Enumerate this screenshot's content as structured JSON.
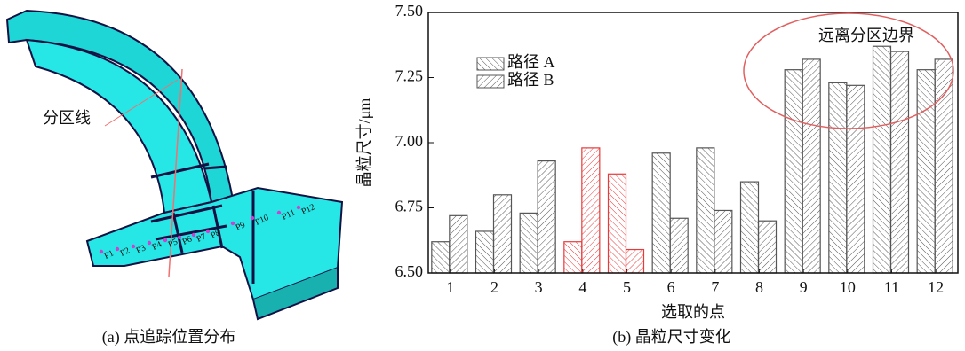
{
  "left_panel": {
    "partition_label": "分区线",
    "points": [
      "P1",
      "P2",
      "P3",
      "P4",
      "P5",
      "P6",
      "P7",
      "P8",
      "P9",
      "P10",
      "P11",
      "P12"
    ],
    "caption": "(a) 点追踪位置分布"
  },
  "chart_data": {
    "type": "bar",
    "caption": "(b) 晶粒尺寸变化",
    "x_label": "选取的点",
    "y_label": "晶粒尺寸/μm",
    "categories": [
      "1",
      "2",
      "3",
      "4",
      "5",
      "6",
      "7",
      "8",
      "9",
      "10",
      "11",
      "12"
    ],
    "series": [
      {
        "name": "路径 A",
        "color": "#555555",
        "colors": [
          "#555555",
          "#555555",
          "#555555",
          "#e83a3a",
          "#e83a3a",
          "#555555",
          "#555555",
          "#555555",
          "#555555",
          "#555555",
          "#555555",
          "#555555"
        ],
        "values": [
          6.62,
          6.66,
          6.73,
          6.62,
          6.88,
          6.96,
          6.98,
          6.85,
          7.28,
          7.23,
          7.37,
          7.28
        ]
      },
      {
        "name": "路径 B",
        "color": "#555555",
        "colors": [
          "#555555",
          "#555555",
          "#555555",
          "#e83a3a",
          "#e83a3a",
          "#555555",
          "#555555",
          "#555555",
          "#555555",
          "#555555",
          "#555555",
          "#555555"
        ],
        "values": [
          6.72,
          6.8,
          6.93,
          6.98,
          6.59,
          6.71,
          6.74,
          6.7,
          7.32,
          7.22,
          7.35,
          7.32
        ]
      }
    ],
    "ylim": [
      6.5,
      7.5
    ],
    "yticks": [
      {
        "value": 6.5,
        "label": "6.50"
      },
      {
        "value": 6.75,
        "label": "6.75"
      },
      {
        "value": 7.0,
        "label": "7.00"
      },
      {
        "value": 7.25,
        "label": "7.25"
      },
      {
        "value": 7.5,
        "label": "7.50"
      }
    ],
    "legend": "upper left",
    "annotation": "远离分区边界"
  }
}
